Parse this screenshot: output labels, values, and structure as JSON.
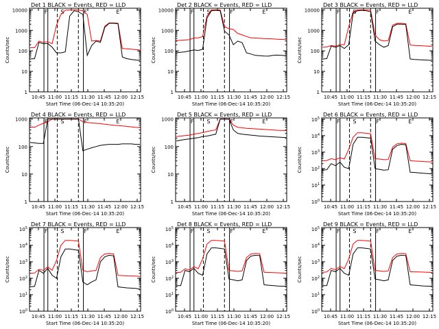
{
  "figure": {
    "xlabel": "Start Time (06-Dec-14 10:35:20)",
    "ylabel": "Counts/sec",
    "x_ticks": [
      "10:45",
      "11:00",
      "11:15",
      "11:30",
      "11:45",
      "12:00",
      "12:15"
    ],
    "legend_text": "BLACK = Events, RED = LLD",
    "colors": {
      "events": "#000000",
      "lld": "#ff0000"
    }
  },
  "chart_data": [
    {
      "type": "line",
      "title": "Det 1",
      "ytick_style": "plain",
      "ylim": [
        1,
        12000
      ],
      "series": [
        {
          "name": "BLACK = Events",
          "values": [
            40,
            42,
            260,
            220,
            230,
            150,
            80,
            80,
            90,
            5000,
            9000,
            8000,
            6000,
            60,
            180,
            300,
            260,
            1400,
            2200,
            2200,
            2100,
            50,
            42,
            38,
            36,
            34
          ]
        },
        {
          "name": "RED = LLD",
          "values": [
            140,
            145,
            300,
            260,
            280,
            220,
            1800,
            6000,
            9500,
            10000,
            10000,
            9800,
            9000,
            6000,
            300,
            320,
            300,
            1600,
            2300,
            2300,
            2200,
            130,
            125,
            120,
            115,
            110
          ]
        }
      ]
    },
    {
      "type": "line",
      "title": "Det 2",
      "ytick_style": "plain",
      "ylim": [
        1,
        12000
      ],
      "series": [
        {
          "name": "BLACK = Events",
          "values": [
            80,
            85,
            90,
            100,
            110,
            105,
            120,
            4000,
            9000,
            9500,
            9000,
            900,
            600,
            200,
            300,
            250,
            80,
            70,
            60,
            58,
            56,
            55,
            60,
            62,
            60,
            58
          ]
        },
        {
          "name": "RED = LLD",
          "values": [
            320,
            330,
            340,
            350,
            420,
            430,
            500,
            5000,
            10000,
            10000,
            10000,
            1500,
            1200,
            1100,
            700,
            600,
            500,
            430,
            420,
            410,
            400,
            390,
            380,
            370,
            360,
            350
          ]
        }
      ]
    },
    {
      "type": "line",
      "title": "Det 3",
      "ytick_style": "plain",
      "ylim": [
        1,
        12000
      ],
      "series": [
        {
          "name": "BLACK = Events",
          "values": [
            40,
            42,
            170,
            150,
            180,
            130,
            200,
            7000,
            9000,
            9500,
            9000,
            8000,
            300,
            200,
            150,
            180,
            1500,
            2000,
            2000,
            1900,
            40,
            38,
            37,
            36,
            35,
            34
          ]
        },
        {
          "name": "RED = LLD",
          "values": [
            150,
            155,
            180,
            170,
            200,
            200,
            1500,
            8000,
            10000,
            10000,
            10000,
            9500,
            600,
            350,
            300,
            320,
            1800,
            2200,
            2200,
            2100,
            190,
            185,
            180,
            175,
            170,
            165
          ]
        }
      ]
    },
    {
      "type": "line",
      "title": "Det 4",
      "ytick_style": "plain",
      "ylim": [
        1,
        1100
      ],
      "series": [
        {
          "name": "BLACK = Events",
          "values": [
            140,
            135,
            130,
            130,
            1000,
            1000,
            1000,
            1000,
            1000,
            1000,
            1000,
            1000,
            70,
            80,
            90,
            100,
            110,
            115,
            120,
            120,
            120,
            125,
            125,
            125,
            120,
            120
          ]
        },
        {
          "name": "RED = LLD",
          "values": [
            520,
            500,
            600,
            700,
            800,
            1000,
            1000,
            1000,
            1000,
            1000,
            1000,
            1000,
            800,
            750,
            720,
            700,
            680,
            650,
            620,
            600,
            580,
            560,
            540,
            520,
            500,
            490
          ]
        }
      ]
    },
    {
      "type": "line",
      "title": "Det 5",
      "ytick_style": "plain",
      "ylim": [
        1,
        1100
      ],
      "series": [
        {
          "name": "BLACK = Events",
          "values": [
            160,
            170,
            180,
            190,
            200,
            210,
            230,
            240,
            260,
            280,
            1000,
            1000,
            1000,
            400,
            300,
            280,
            270,
            260,
            250,
            240,
            235,
            230,
            225,
            220,
            215,
            210
          ]
        },
        {
          "name": "RED = LLD",
          "values": [
            230,
            240,
            250,
            260,
            280,
            300,
            320,
            350,
            380,
            400,
            1000,
            1000,
            1000,
            600,
            500,
            480,
            460,
            450,
            440,
            430,
            420,
            410,
            400,
            390,
            385,
            380
          ]
        }
      ]
    },
    {
      "type": "line",
      "title": "Det 6",
      "ytick_style": "exp",
      "ylim": [
        1,
        120000
      ],
      "series": [
        {
          "name": "BLACK = Events",
          "values": [
            80,
            85,
            200,
            150,
            250,
            120,
            100,
            3000,
            8000,
            8000,
            7500,
            7000,
            100,
            90,
            80,
            85,
            1500,
            2500,
            3000,
            2800,
            60,
            58,
            55,
            52,
            50,
            48
          ]
        },
        {
          "name": "RED = LLD",
          "values": [
            300,
            310,
            400,
            350,
            450,
            380,
            1500,
            8000,
            15000,
            15000,
            14000,
            13000,
            400,
            380,
            350,
            360,
            2000,
            3200,
            3500,
            3300,
            300,
            290,
            280,
            270,
            260,
            250
          ]
        }
      ]
    },
    {
      "type": "line",
      "title": "Det 7",
      "ytick_style": "exp",
      "ylim": [
        1,
        120000
      ],
      "series": [
        {
          "name": "BLACK = Events",
          "values": [
            30,
            32,
            300,
            200,
            400,
            150,
            100,
            2000,
            6000,
            6000,
            5500,
            5000,
            60,
            40,
            60,
            80,
            1000,
            2000,
            2500,
            2300,
            30,
            28,
            26,
            25,
            24,
            22
          ]
        },
        {
          "name": "RED = LLD",
          "values": [
            200,
            210,
            350,
            300,
            500,
            300,
            1200,
            10000,
            20000,
            20000,
            19000,
            18000,
            300,
            250,
            280,
            300,
            1800,
            3000,
            3200,
            3000,
            150,
            145,
            140,
            138,
            135,
            130
          ]
        }
      ]
    },
    {
      "type": "line",
      "title": "Det 8",
      "ytick_style": "exp",
      "ylim": [
        1,
        120000
      ],
      "series": [
        {
          "name": "BLACK = Events",
          "values": [
            35,
            36,
            300,
            250,
            400,
            200,
            150,
            3000,
            7000,
            7000,
            6500,
            6000,
            90,
            80,
            70,
            80,
            1200,
            2200,
            2500,
            2400,
            40,
            38,
            36,
            34,
            33,
            32
          ]
        },
        {
          "name": "RED = LLD",
          "values": [
            220,
            230,
            380,
            320,
            500,
            380,
            1500,
            12000,
            20000,
            20000,
            19000,
            18000,
            300,
            280,
            260,
            280,
            1800,
            3000,
            3200,
            3100,
            230,
            225,
            220,
            215,
            210,
            205
          ]
        }
      ]
    },
    {
      "type": "line",
      "title": "Det 9",
      "ytick_style": "exp",
      "ylim": [
        1,
        120000
      ],
      "series": [
        {
          "name": "BLACK = Events",
          "values": [
            35,
            36,
            300,
            250,
            400,
            200,
            150,
            3000,
            7000,
            7000,
            6500,
            6000,
            90,
            80,
            70,
            80,
            1200,
            2200,
            2500,
            2400,
            40,
            38,
            36,
            34,
            33,
            32
          ]
        },
        {
          "name": "RED = LLD",
          "values": [
            230,
            240,
            400,
            330,
            520,
            380,
            1500,
            12000,
            20000,
            20000,
            19000,
            18000,
            300,
            280,
            260,
            280,
            1800,
            3000,
            3200,
            3100,
            250,
            245,
            240,
            235,
            230,
            225
          ]
        }
      ]
    }
  ]
}
